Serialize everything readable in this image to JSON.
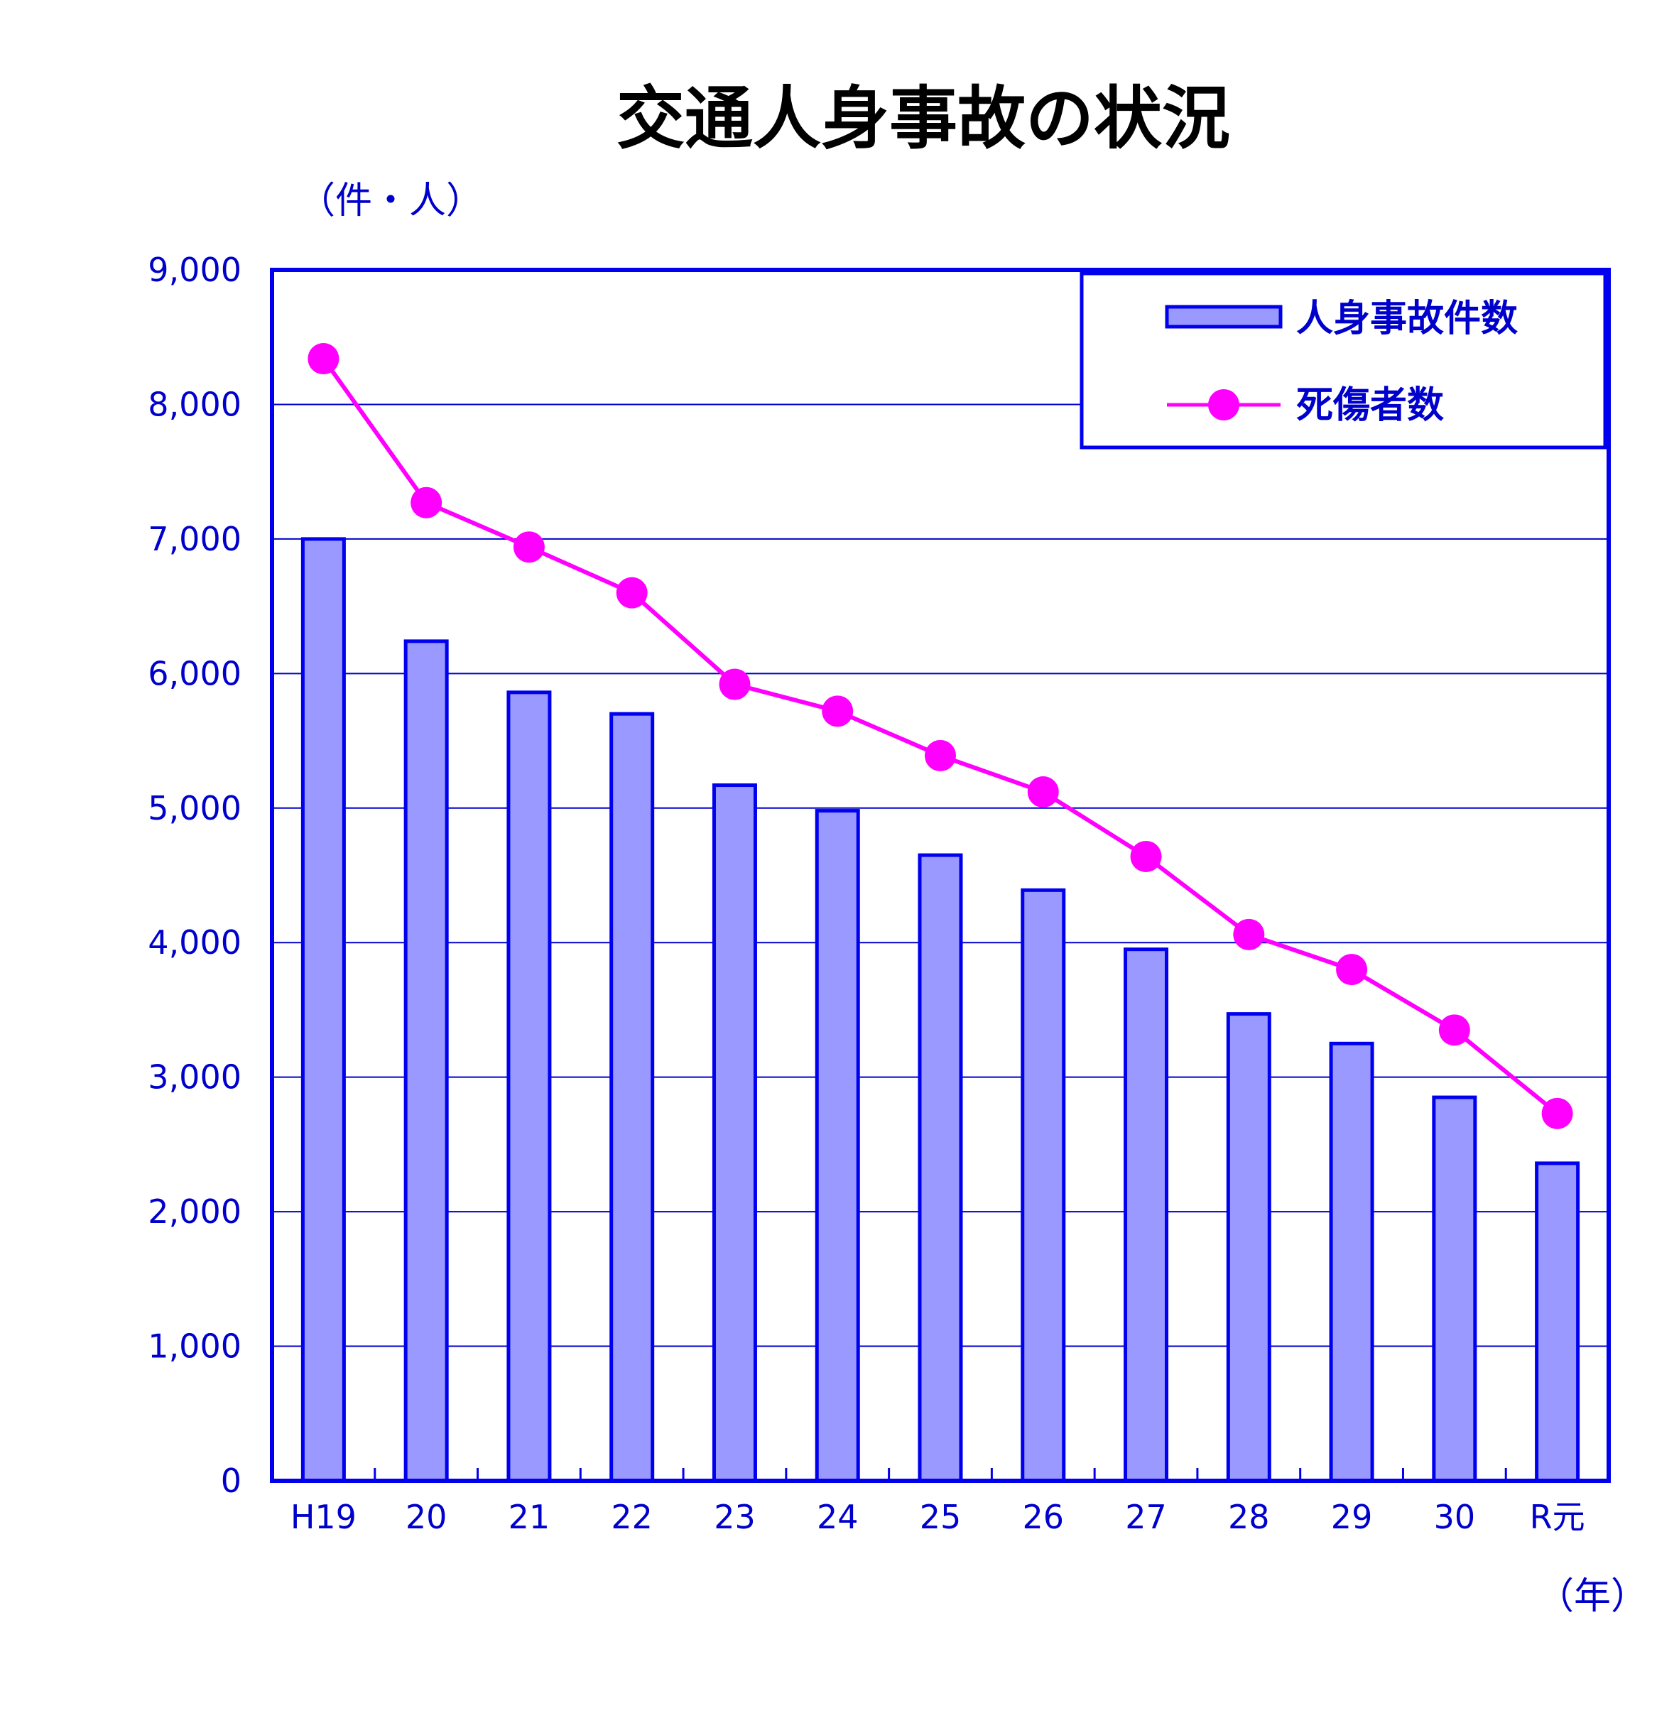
{
  "colors": {
    "axis": "#0000ee",
    "grid": "#0000cc",
    "bar_fill": "#9999ff",
    "bar_stroke": "#0000ee",
    "line": "#ff00ff",
    "text": "#0000cc",
    "title": "#000000"
  },
  "chart_data": {
    "type": "bar",
    "title": "交通人身事故の状況",
    "ylabel": "（件・人）",
    "xlabel": "（年）",
    "ylim": [
      0,
      9000
    ],
    "yticks": [
      "0",
      "1,000",
      "2,000",
      "3,000",
      "4,000",
      "5,000",
      "6,000",
      "7,000",
      "8,000",
      "9,000"
    ],
    "categories": [
      "H19",
      "20",
      "21",
      "22",
      "23",
      "24",
      "25",
      "26",
      "27",
      "28",
      "29",
      "30",
      "R元"
    ],
    "grid": true,
    "legend_position": "top-right",
    "series": [
      {
        "name": "人身事故件数",
        "kind": "bar",
        "values": [
          7000,
          6240,
          5860,
          5700,
          5170,
          4980,
          4650,
          4390,
          3950,
          3470,
          3250,
          2850,
          2360
        ]
      },
      {
        "name": "死傷者数",
        "kind": "line",
        "values": [
          8340,
          7270,
          6940,
          6600,
          5920,
          5720,
          5390,
          5120,
          4640,
          4060,
          3800,
          3350,
          2730
        ]
      }
    ]
  }
}
